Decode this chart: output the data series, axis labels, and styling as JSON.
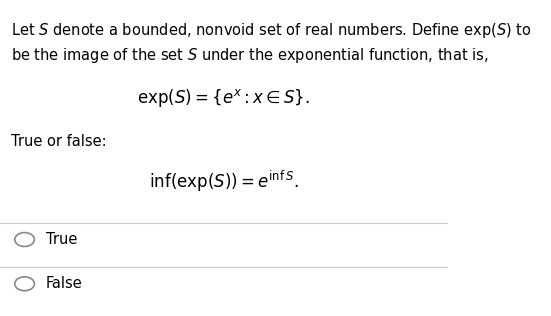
{
  "background_color": "#ffffff",
  "text_color": "#000000",
  "line1": "Let $S$ denote a bounded, nonvoid set of real numbers. Define $\\mathrm{exp}(S)$ to",
  "line2": "be the image of the set $S$ under the exponential function, that is,",
  "formula1": "$\\mathrm{exp}(S) = \\{e^{x} : x \\in S\\}.$",
  "true_or_false": "True or false:",
  "formula2": "$\\mathrm{inf}(\\mathrm{exp}(S)) = e^{\\mathrm{inf}\\, S}.$",
  "option_true": "True",
  "option_false": "False",
  "separator_color": "#cccccc",
  "circle_color": "#888888",
  "body_fs": 10.5,
  "formula_fs": 12,
  "fig_width": 5.51,
  "fig_height": 3.16,
  "dpi": 100
}
